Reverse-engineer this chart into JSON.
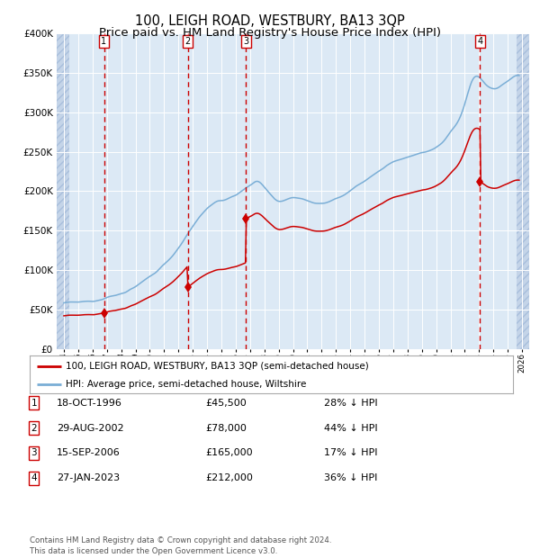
{
  "title": "100, LEIGH ROAD, WESTBURY, BA13 3QP",
  "subtitle": "Price paid vs. HM Land Registry's House Price Index (HPI)",
  "title_fontsize": 10.5,
  "subtitle_fontsize": 9.5,
  "background_color": "#dce9f5",
  "hatch_color": "#c4d4e8",
  "ylim": [
    0,
    400000
  ],
  "yticks": [
    0,
    50000,
    100000,
    150000,
    200000,
    250000,
    300000,
    350000,
    400000
  ],
  "xlim_start": 1993.5,
  "xlim_end": 2026.5,
  "hatch_left_end": 1994.4,
  "hatch_right_start": 2025.6,
  "sales": [
    {
      "label": 1,
      "date": 1996.8,
      "price": 45500
    },
    {
      "label": 2,
      "date": 2002.65,
      "price": 78000
    },
    {
      "label": 3,
      "date": 2006.71,
      "price": 165000
    },
    {
      "label": 4,
      "date": 2023.07,
      "price": 212000
    }
  ],
  "legend_line1": "100, LEIGH ROAD, WESTBURY, BA13 3QP (semi-detached house)",
  "legend_line2": "HPI: Average price, semi-detached house, Wiltshire",
  "table_rows": [
    {
      "num": 1,
      "date": "18-OCT-1996",
      "price": "£45,500",
      "pct": "28% ↓ HPI"
    },
    {
      "num": 2,
      "date": "29-AUG-2002",
      "price": "£78,000",
      "pct": "44% ↓ HPI"
    },
    {
      "num": 3,
      "date": "15-SEP-2006",
      "price": "£165,000",
      "pct": "17% ↓ HPI"
    },
    {
      "num": 4,
      "date": "27-JAN-2023",
      "price": "£212,000",
      "pct": "36% ↓ HPI"
    }
  ],
  "footer": "Contains HM Land Registry data © Crown copyright and database right 2024.\nThis data is licensed under the Open Government Licence v3.0.",
  "red_line_color": "#cc0000",
  "blue_line_color": "#7aaed6"
}
